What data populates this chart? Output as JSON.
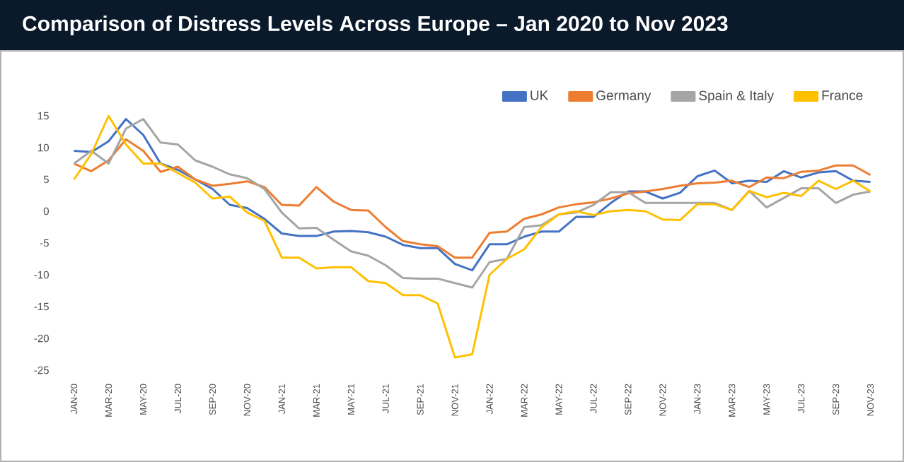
{
  "chart_data": {
    "type": "line",
    "title": "Comparison of Distress Levels Across Europe – Jan 2020 to Nov 2023",
    "categories": [
      "JAN-20",
      null,
      "MAR-20",
      null,
      "MAY-20",
      null,
      "JUL-20",
      null,
      "SEP-20",
      null,
      "NOV-20",
      null,
      "JAN-21",
      null,
      "MAR-21",
      null,
      "MAY-21",
      null,
      "JUL-21",
      null,
      "SEP-21",
      null,
      "NOV-21",
      null,
      "JAN-22",
      null,
      "MAR-22",
      null,
      "MAY-22",
      null,
      "JUL-22",
      null,
      "SEP-22",
      null,
      "NOV-22",
      null,
      "JAN-23",
      null,
      "MAR-23",
      null,
      "MAY-23",
      null,
      "JUL-23",
      null,
      "SEP-23",
      null,
      "NOV-23"
    ],
    "series": [
      {
        "name": "UK",
        "color": "#4472c4",
        "values": [
          9.5,
          9.3,
          11,
          14.5,
          12,
          7.5,
          6.5,
          5,
          3.5,
          1,
          0.5,
          -1.2,
          -3.5,
          -3.9,
          -3.9,
          -3.2,
          -3.1,
          -3.3,
          -4,
          -5.3,
          -5.8,
          -5.8,
          -8.3,
          -9.3,
          -5.2,
          -5.2,
          -4,
          -3.2,
          -3.2,
          -0.9,
          -0.9,
          1.3,
          3.1,
          3.1,
          2,
          2.9,
          5.5,
          6.4,
          4.4,
          4.8,
          4.6,
          6.3,
          5.3,
          6.1,
          6.3,
          4.8,
          4.6
        ]
      },
      {
        "name": "Germany",
        "color": "#ed7d31",
        "values": [
          7.5,
          6.3,
          8,
          11.3,
          9.5,
          6.2,
          7,
          5,
          4,
          4.3,
          4.7,
          3.8,
          1,
          0.9,
          3.8,
          1.5,
          0.2,
          0.1,
          -2.5,
          -4.7,
          -5.2,
          -5.5,
          -7.3,
          -7.3,
          -3.4,
          -3.2,
          -1.2,
          -0.5,
          0.6,
          1.1,
          1.4,
          2,
          2.8,
          3.1,
          3.5,
          4,
          4.4,
          4.5,
          4.8,
          3.8,
          5.3,
          5.2,
          6.2,
          6.4,
          7.2,
          7.2,
          5.7
        ]
      },
      {
        "name": "Spain & Italy",
        "color": "#a5a5a5",
        "values": [
          7.5,
          9.5,
          7.5,
          13,
          14.5,
          10.8,
          10.5,
          8,
          7,
          5.8,
          5.2,
          3.5,
          -0.2,
          -2.7,
          -2.6,
          -4.5,
          -6.3,
          -7,
          -8.5,
          -10.5,
          -10.6,
          -10.6,
          -11.3,
          -12,
          -8,
          -7.5,
          -2.5,
          -2.2,
          -0.5,
          -0.2,
          1,
          3,
          3,
          1.3,
          1.3,
          1.3,
          1.3,
          1.3,
          0.2,
          3.2,
          0.6,
          2.1,
          3.6,
          3.6,
          1.3,
          2.6,
          3.1
        ]
      },
      {
        "name": "France",
        "color": "#ffc000",
        "values": [
          5,
          9,
          15,
          10.5,
          7.5,
          7.5,
          6,
          4.5,
          2,
          2.3,
          -0.2,
          -1.5,
          -7.3,
          -7.3,
          -9,
          -8.8,
          -8.8,
          -11,
          -11.3,
          -13.2,
          -13.2,
          -14.5,
          -23,
          -22.5,
          -10,
          -7.5,
          -6,
          -2.5,
          -0.5,
          0,
          -0.6,
          0,
          0.2,
          0,
          -1.3,
          -1.4,
          1.1,
          1.1,
          0.2,
          3.2,
          2.2,
          2.9,
          2.4,
          4.8,
          3.5,
          4.8,
          3.1
        ]
      }
    ],
    "ylim": [
      -25,
      15
    ],
    "yticks": [
      15,
      10,
      5,
      0,
      -5,
      -10,
      -15,
      -20,
      -25
    ],
    "legend": "top right",
    "marker": "none"
  }
}
